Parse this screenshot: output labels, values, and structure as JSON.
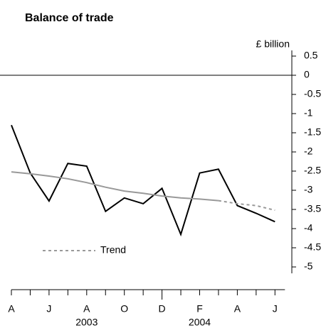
{
  "chart_data": {
    "type": "line",
    "title": "Balance of trade",
    "y_label": "£ billion",
    "categories": [
      "A",
      null,
      "J",
      null,
      "A",
      null,
      "O",
      null,
      "D",
      null,
      "F",
      null,
      "A",
      null,
      "J"
    ],
    "years": [
      "2003",
      "2004"
    ],
    "series": [
      {
        "color": "#000000",
        "values": [
          -1.3,
          -2.55,
          -3.28,
          -2.3,
          -2.37,
          -3.55,
          -3.2,
          -3.35,
          -2.95,
          -4.15,
          -2.55,
          -2.45,
          -3.4,
          -3.6,
          -3.82
        ]
      },
      {
        "name": "Trend",
        "color": "#999999",
        "dashed_from": 11,
        "values": [
          -2.52,
          -2.57,
          -2.63,
          -2.7,
          -2.8,
          -2.92,
          -3.02,
          -3.08,
          -3.15,
          -3.2,
          -3.23,
          -3.27,
          -3.35,
          -3.4,
          -3.52
        ]
      }
    ],
    "ylim": [
      -5,
      0.5
    ],
    "yticks": [
      0.5,
      0,
      -0.5,
      -1,
      -1.5,
      -2,
      -2.5,
      -3,
      -3.5,
      -4,
      -4.5,
      -5
    ],
    "zero_line": true
  }
}
